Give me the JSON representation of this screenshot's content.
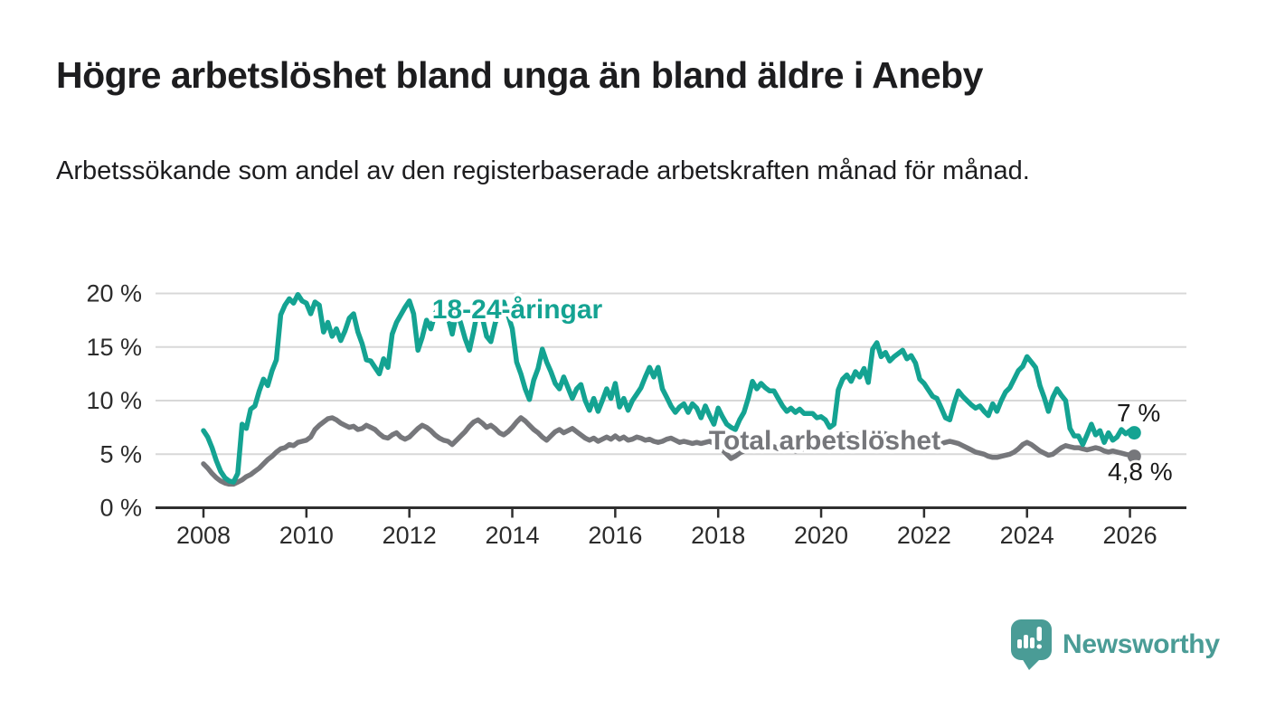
{
  "header": {
    "title": "Högre arbetslöshet bland unga än bland äldre i Aneby",
    "subtitle": "Arbetssökande som andel av den registerbaserade arbetskraften månad för månad."
  },
  "chart_data": {
    "type": "line",
    "title": "Högre arbetslöshet bland unga än bland äldre i Aneby",
    "unit": "%",
    "frequency": "monthly",
    "x_start": "2008-01",
    "x_end": "2026-02",
    "grid": true,
    "legend_position": "inline-labels",
    "ylim": [
      0,
      20
    ],
    "y_ticks": [
      0,
      5,
      10,
      15,
      20
    ],
    "y_tick_labels": [
      "0 %",
      "5 %",
      "10 %",
      "15 %",
      "20 %"
    ],
    "x_tick_labels": [
      "2008",
      "2010",
      "2012",
      "2014",
      "2016",
      "2018",
      "2020",
      "2022",
      "2024",
      "2026"
    ],
    "colors": {
      "youth_line": "#14a392",
      "total_line": "#76777b",
      "grid": "#d8d8d8",
      "axis": "#2e2e2e",
      "tick_text": "#2b2b2b",
      "value_label_text": "#1a1a1a",
      "brand": "#4a9c96"
    },
    "series": [
      {
        "id": "youth",
        "name": "18-24-åringar",
        "color": "#14a392",
        "end_label": "7 %",
        "end_value": 7.0,
        "values": [
          7.2,
          6.6,
          5.6,
          4.4,
          3.4,
          2.8,
          2.5,
          2.4,
          3.2,
          7.8,
          7.4,
          9.2,
          9.5,
          10.9,
          12,
          11.4,
          12.8,
          13.8,
          18,
          18.9,
          19.5,
          19.1,
          19.9,
          19.3,
          19.1,
          18.1,
          19.2,
          18.9,
          16.4,
          17.3,
          16,
          16.7,
          15.6,
          16.5,
          17.7,
          18.1,
          16.4,
          15.3,
          13.8,
          13.7,
          13.1,
          12.5,
          13.9,
          13.1,
          16.2,
          17.3,
          18,
          18.7,
          19.3,
          18.1,
          14.7,
          15.9,
          17.5,
          16.7,
          18.1,
          18.8,
          19,
          17.8,
          16.2,
          18.3,
          17.2,
          15.8,
          14.7,
          16.5,
          18.6,
          17.8,
          16,
          15.5,
          17.2,
          18.3,
          19.2,
          18,
          16.7,
          13.6,
          12.5,
          11.1,
          10.1,
          11.9,
          13,
          14.8,
          13.6,
          12.7,
          11.6,
          11.1,
          12.2,
          11.2,
          10.2,
          11.1,
          11.5,
          10,
          9.1,
          10.2,
          9,
          10,
          11.1,
          10.2,
          11.6,
          9.4,
          10.2,
          9.1,
          10,
          10.6,
          11.2,
          12.2,
          13.1,
          12.2,
          13.1,
          11.1,
          10.3,
          9.5,
          8.9,
          9.4,
          9.7,
          8.9,
          9.7,
          9.3,
          8.4,
          9.5,
          8.6,
          7.8,
          9.3,
          8.5,
          7.8,
          7.5,
          7.3,
          8.2,
          8.9,
          10.2,
          11.8,
          11.1,
          11.6,
          11.2,
          10.9,
          10.9,
          10.2,
          9.5,
          9,
          9.3,
          8.9,
          9.2,
          8.8,
          8.8,
          8.8,
          8.4,
          8.5,
          8.2,
          7.5,
          7.8,
          11,
          12,
          12.4,
          11.8,
          12.7,
          12.2,
          13,
          11.7,
          14.8,
          15.4,
          14.1,
          14.5,
          13.7,
          14.1,
          14.4,
          14.7,
          13.9,
          14.2,
          13.5,
          12,
          11.6,
          11,
          10.4,
          10.2,
          9.3,
          8.4,
          8.2,
          9.7,
          10.9,
          10.4,
          10,
          9.6,
          9.3,
          9.5,
          9,
          8.6,
          9.7,
          9,
          10,
          10.8,
          11.2,
          12,
          12.8,
          13.2,
          14.1,
          13.6,
          13.1,
          11.4,
          10.3,
          9,
          10.3,
          11.1,
          10.5,
          10,
          7.4,
          6.7,
          6.7,
          5.9,
          6.8,
          7.8,
          6.8,
          7.2,
          6.1,
          7,
          6.3,
          6.6,
          7.3,
          6.9,
          7.2,
          7
        ]
      },
      {
        "id": "total",
        "name": "Total arbetslöshet",
        "color": "#76777b",
        "end_label": "4,8 %",
        "end_value": 4.8,
        "values": [
          4.1,
          3.7,
          3.2,
          2.8,
          2.5,
          2.3,
          2.2,
          2.2,
          2.4,
          2.6,
          2.9,
          3.1,
          3.4,
          3.7,
          4.1,
          4.5,
          4.8,
          5.2,
          5.5,
          5.6,
          5.9,
          5.8,
          6.1,
          6.2,
          6.3,
          6.6,
          7.3,
          7.7,
          8,
          8.3,
          8.4,
          8.2,
          7.9,
          7.7,
          7.5,
          7.6,
          7.3,
          7.4,
          7.7,
          7.5,
          7.3,
          6.9,
          6.6,
          6.5,
          6.8,
          7,
          6.6,
          6.4,
          6.6,
          7,
          7.4,
          7.7,
          7.5,
          7.2,
          6.8,
          6.5,
          6.3,
          6.2,
          5.9,
          6.3,
          6.7,
          7.1,
          7.6,
          8,
          8.2,
          7.9,
          7.5,
          7.7,
          7.4,
          7,
          6.8,
          7.1,
          7.5,
          8,
          8.4,
          8.1,
          7.7,
          7.3,
          7,
          6.6,
          6.3,
          6.7,
          7.1,
          7.3,
          7,
          7.2,
          7.4,
          7.1,
          6.8,
          6.5,
          6.3,
          6.5,
          6.2,
          6.4,
          6.6,
          6.4,
          6.7,
          6.4,
          6.6,
          6.3,
          6.4,
          6.6,
          6.5,
          6.3,
          6.4,
          6.2,
          6.1,
          6.2,
          6.4,
          6.5,
          6.3,
          6.1,
          6.2,
          6.1,
          6,
          6.1,
          6,
          6.1,
          6.2,
          6,
          5.7,
          5.4,
          5,
          4.6,
          4.8,
          5.1,
          5.3,
          5.5,
          5.4,
          5.6,
          5.5,
          5.7,
          5.6,
          5.7,
          5.5,
          5.6,
          5.4,
          5.5,
          5.3,
          5.4,
          5.5,
          5.6,
          5.7,
          5.8,
          5.9,
          6,
          6.2,
          6.5,
          6.7,
          6.8,
          6.9,
          6.8,
          6.7,
          6.8,
          6.6,
          6.7,
          6.8,
          6.9,
          7,
          6.9,
          6.7,
          6.5,
          6.3,
          6.2,
          6.1,
          6,
          5.9,
          5.9,
          6,
          5.9,
          5.8,
          5.9,
          6,
          6.1,
          6.2,
          6.1,
          6,
          5.8,
          5.6,
          5.4,
          5.2,
          5.1,
          5,
          4.8,
          4.7,
          4.7,
          4.8,
          4.9,
          5,
          5.2,
          5.5,
          5.9,
          6.1,
          5.9,
          5.6,
          5.3,
          5.1,
          4.9,
          5,
          5.3,
          5.6,
          5.8,
          5.7,
          5.6,
          5.6,
          5.5,
          5.4,
          5.5,
          5.6,
          5.5,
          5.3,
          5.2,
          5.3,
          5.2,
          5.1,
          5,
          4.9,
          4.8
        ]
      }
    ]
  },
  "footer": {
    "brand": "Newsworthy"
  }
}
